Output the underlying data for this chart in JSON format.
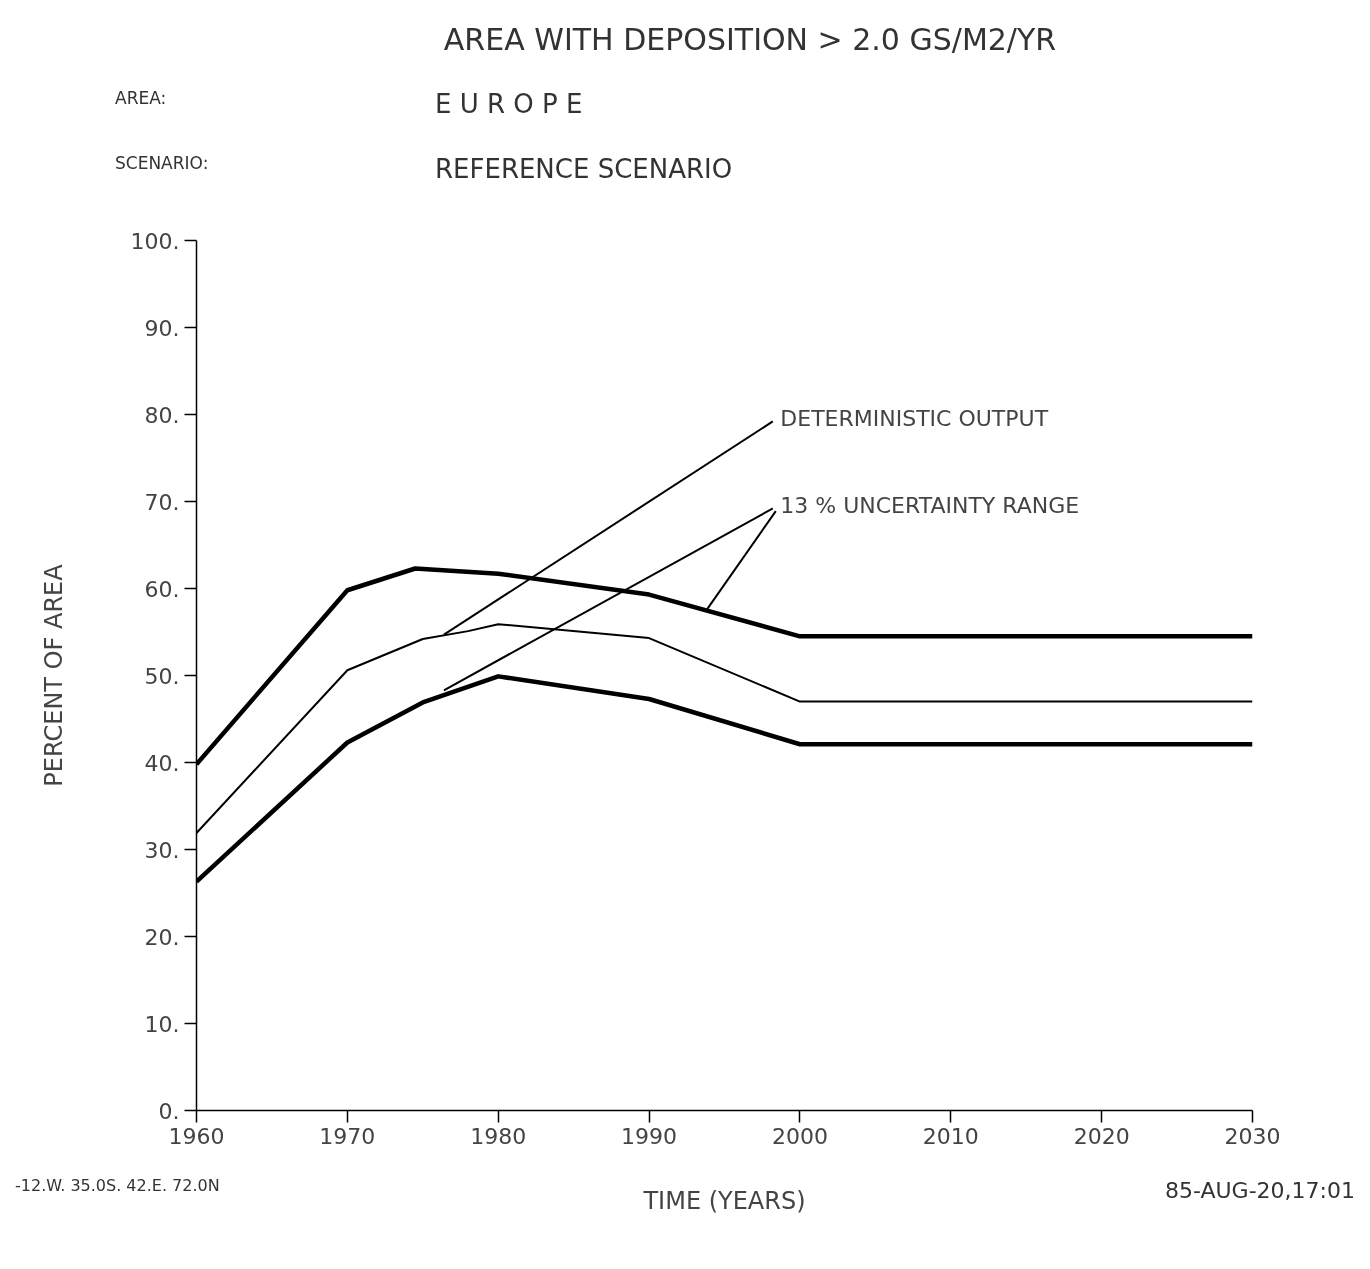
{
  "chart_data": {
    "type": "line",
    "title": "AREA WITH DEPOSITION >  2.0 GS/M2/YR",
    "xlabel": "TIME (YEARS)",
    "ylabel": "PERCENT OF AREA",
    "xlim": [
      1960,
      2030
    ],
    "ylim": [
      0,
      100
    ],
    "xticks": [
      1960,
      1970,
      1980,
      1990,
      2000,
      2010,
      2020,
      2030
    ],
    "yticks": [
      {
        "value": 0,
        "label": "0."
      },
      {
        "value": 10,
        "label": "10."
      },
      {
        "value": 20,
        "label": "20."
      },
      {
        "value": 30,
        "label": "30."
      },
      {
        "value": 40,
        "label": "40."
      },
      {
        "value": 50,
        "label": "50."
      },
      {
        "value": 60,
        "label": "60."
      },
      {
        "value": 70,
        "label": "70."
      },
      {
        "value": 80,
        "label": "80."
      },
      {
        "value": 90,
        "label": "90."
      },
      {
        "value": 100,
        "label": "100."
      }
    ],
    "grid": false,
    "marker": "none",
    "line_style": "solid",
    "series": [
      {
        "color": "#000000",
        "x": [
          1960,
          1970,
          1974.5,
          1980,
          1990,
          2000,
          2030
        ],
        "values": [
          39.8,
          59.8,
          62.3,
          61.7,
          59.3,
          54.5,
          54.5
        ]
      },
      {
        "color": "#000000",
        "x": [
          1960,
          1970,
          1975,
          1978,
          1980,
          1990,
          2000,
          2030
        ],
        "values": [
          31.9,
          50.6,
          54.2,
          55.1,
          55.9,
          54.3,
          47.0,
          47.0
        ]
      },
      {
        "color": "#000000",
        "x": [
          1960,
          1970,
          1975,
          1980,
          1990,
          2000,
          2030
        ],
        "values": [
          26.3,
          42.3,
          46.9,
          49.9,
          47.3,
          42.1,
          42.1
        ]
      }
    ],
    "annotations": [
      {
        "text": "DETERMINISTIC OUTPUT",
        "x": 1976.4,
        "y": 54.7
      },
      {
        "text": "13 % UNCERTAINTY RANGE",
        "x": 1976.4,
        "y": 48.3
      },
      "AREA:",
      "E U R O P E",
      "SCENARIO:",
      "REFERENCE SCENARIO",
      "-12.W. 35.0S. 42.E. 72.0N",
      "85-AUG-20,17:01"
    ]
  }
}
